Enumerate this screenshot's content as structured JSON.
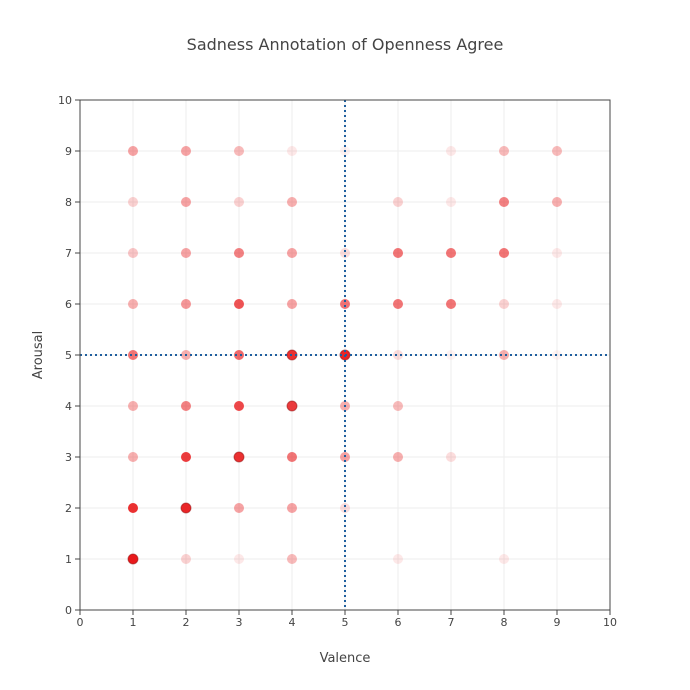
{
  "chart_data": {
    "type": "scatter",
    "title": "Sadness Annotation of Openness Agree",
    "xlabel": "Valence",
    "ylabel": "Arousal",
    "xlim": [
      0,
      10
    ],
    "ylim": [
      0,
      10
    ],
    "xticks": [
      "0",
      "1",
      "2",
      "3",
      "4",
      "5",
      "6",
      "7",
      "8",
      "9",
      "10"
    ],
    "yticks": [
      "0",
      "1",
      "2",
      "3",
      "4",
      "5",
      "6",
      "7",
      "8",
      "9",
      "10"
    ],
    "grid": true,
    "legend": "none",
    "marker_color": "#e8191b",
    "reference_lines": {
      "x": 5,
      "y": 5,
      "style": "dotted",
      "color": "#1f5f9e"
    },
    "points": [
      {
        "x": 1,
        "y": 1,
        "opacity": 1.0,
        "outline": true
      },
      {
        "x": 2,
        "y": 1,
        "opacity": 0.2
      },
      {
        "x": 3,
        "y": 1,
        "opacity": 0.1
      },
      {
        "x": 4,
        "y": 1,
        "opacity": 0.3
      },
      {
        "x": 6,
        "y": 1,
        "opacity": 0.1
      },
      {
        "x": 8,
        "y": 1,
        "opacity": 0.1
      },
      {
        "x": 1,
        "y": 2,
        "opacity": 0.9
      },
      {
        "x": 2,
        "y": 2,
        "opacity": 0.95,
        "outline": true
      },
      {
        "x": 3,
        "y": 2,
        "opacity": 0.4
      },
      {
        "x": 4,
        "y": 2,
        "opacity": 0.4
      },
      {
        "x": 5,
        "y": 2,
        "opacity": 0.15
      },
      {
        "x": 1,
        "y": 3,
        "opacity": 0.35
      },
      {
        "x": 2,
        "y": 3,
        "opacity": 0.85
      },
      {
        "x": 3,
        "y": 3,
        "opacity": 0.9,
        "outline": true
      },
      {
        "x": 4,
        "y": 3,
        "opacity": 0.6
      },
      {
        "x": 5,
        "y": 3,
        "opacity": 0.4
      },
      {
        "x": 6,
        "y": 3,
        "opacity": 0.35
      },
      {
        "x": 7,
        "y": 3,
        "opacity": 0.15
      },
      {
        "x": 1,
        "y": 4,
        "opacity": 0.35
      },
      {
        "x": 2,
        "y": 4,
        "opacity": 0.55
      },
      {
        "x": 3,
        "y": 4,
        "opacity": 0.8
      },
      {
        "x": 4,
        "y": 4,
        "opacity": 0.85,
        "outline": true
      },
      {
        "x": 5,
        "y": 4,
        "opacity": 0.35
      },
      {
        "x": 6,
        "y": 4,
        "opacity": 0.3
      },
      {
        "x": 1,
        "y": 5,
        "opacity": 0.6
      },
      {
        "x": 2,
        "y": 5,
        "opacity": 0.35
      },
      {
        "x": 3,
        "y": 5,
        "opacity": 0.65
      },
      {
        "x": 4,
        "y": 5,
        "opacity": 0.9,
        "outline": true
      },
      {
        "x": 5,
        "y": 5,
        "opacity": 0.95,
        "outline": true
      },
      {
        "x": 6,
        "y": 5,
        "opacity": 0.15
      },
      {
        "x": 7,
        "y": 5,
        "opacity": 0.05
      },
      {
        "x": 8,
        "y": 5,
        "opacity": 0.35
      },
      {
        "x": 9,
        "y": 5,
        "opacity": 0.05
      },
      {
        "x": 1,
        "y": 6,
        "opacity": 0.35
      },
      {
        "x": 2,
        "y": 6,
        "opacity": 0.45
      },
      {
        "x": 3,
        "y": 6,
        "opacity": 0.75
      },
      {
        "x": 4,
        "y": 6,
        "opacity": 0.4
      },
      {
        "x": 5,
        "y": 6,
        "opacity": 0.6
      },
      {
        "x": 6,
        "y": 6,
        "opacity": 0.6
      },
      {
        "x": 7,
        "y": 6,
        "opacity": 0.6
      },
      {
        "x": 8,
        "y": 6,
        "opacity": 0.2
      },
      {
        "x": 9,
        "y": 6,
        "opacity": 0.1
      },
      {
        "x": 1,
        "y": 7,
        "opacity": 0.25
      },
      {
        "x": 2,
        "y": 7,
        "opacity": 0.4
      },
      {
        "x": 3,
        "y": 7,
        "opacity": 0.55
      },
      {
        "x": 4,
        "y": 7,
        "opacity": 0.4
      },
      {
        "x": 5,
        "y": 7,
        "opacity": 0.15
      },
      {
        "x": 6,
        "y": 7,
        "opacity": 0.6
      },
      {
        "x": 7,
        "y": 7,
        "opacity": 0.6
      },
      {
        "x": 8,
        "y": 7,
        "opacity": 0.6
      },
      {
        "x": 9,
        "y": 7,
        "opacity": 0.1
      },
      {
        "x": 1,
        "y": 8,
        "opacity": 0.2
      },
      {
        "x": 2,
        "y": 8,
        "opacity": 0.4
      },
      {
        "x": 3,
        "y": 8,
        "opacity": 0.2
      },
      {
        "x": 4,
        "y": 8,
        "opacity": 0.35
      },
      {
        "x": 6,
        "y": 8,
        "opacity": 0.2
      },
      {
        "x": 7,
        "y": 8,
        "opacity": 0.1
      },
      {
        "x": 8,
        "y": 8,
        "opacity": 0.55
      },
      {
        "x": 9,
        "y": 8,
        "opacity": 0.35
      },
      {
        "x": 1,
        "y": 9,
        "opacity": 0.4
      },
      {
        "x": 2,
        "y": 9,
        "opacity": 0.4
      },
      {
        "x": 3,
        "y": 9,
        "opacity": 0.3
      },
      {
        "x": 4,
        "y": 9,
        "opacity": 0.1
      },
      {
        "x": 5,
        "y": 9,
        "opacity": 0.05
      },
      {
        "x": 7,
        "y": 9,
        "opacity": 0.1
      },
      {
        "x": 8,
        "y": 9,
        "opacity": 0.3
      },
      {
        "x": 9,
        "y": 9,
        "opacity": 0.3
      }
    ]
  }
}
